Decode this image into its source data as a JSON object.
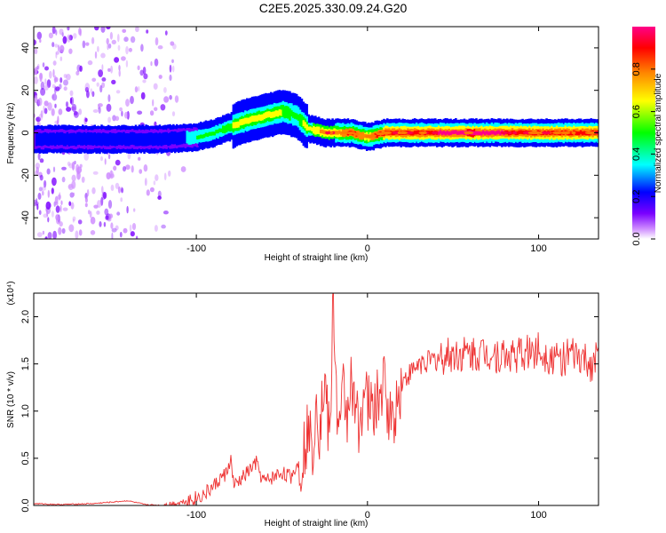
{
  "chart_data": [
    {
      "type": "heatmap",
      "title": "C2E5.2025.330.09.24.G20",
      "xlabel": "Height of straight line (km)",
      "ylabel": "Frequency (Hz)",
      "xlim": [
        -195,
        135
      ],
      "ylim": [
        -50,
        50
      ],
      "x_ticks": [
        -100,
        0,
        100
      ],
      "y_ticks": [
        -40,
        -20,
        0,
        20,
        40
      ],
      "colorbar": {
        "label": "Normalized spectral amplitude",
        "range": [
          0,
          1
        ],
        "ticks": [
          "0.0",
          "0.2",
          "0.4",
          "0.6",
          "0.8"
        ],
        "colors": [
          "#ffffff",
          "#cc88ff",
          "#7a00ff",
          "#0000ff",
          "#00ffff",
          "#00ff00",
          "#ffff00",
          "#ff8800",
          "#ff0000",
          "#ff0088"
        ]
      },
      "ridge": {
        "description_x": [
          -195,
          -160,
          -140,
          -120,
          -100,
          -90,
          -80,
          -70,
          -60,
          -50,
          -42,
          -35,
          -25,
          -10,
          0,
          10,
          20,
          40,
          60,
          80,
          100,
          120,
          135
        ],
        "frequency": [
          -3,
          -3,
          -3,
          -3,
          -2,
          0,
          3,
          6,
          8,
          10,
          8,
          2,
          0,
          0,
          -2,
          0,
          0,
          0,
          0,
          0,
          0,
          0,
          0
        ],
        "amplitude": [
          0.2,
          0.3,
          0.25,
          0.3,
          0.4,
          0.45,
          0.5,
          0.55,
          0.55,
          0.5,
          0.45,
          0.55,
          0.7,
          0.8,
          0.75,
          0.85,
          0.9,
          0.9,
          0.92,
          0.9,
          0.88,
          0.9,
          0.88
        ]
      },
      "noise_region_x": [
        -195,
        -105
      ],
      "colors": {
        "noise": "#8800ff"
      }
    },
    {
      "type": "line",
      "xlabel": "Height of straight line (km)",
      "ylabel": "SNR (10 * v/v)",
      "y_multiplier": "(x10⁴)",
      "xlim": [
        -195,
        135
      ],
      "ylim": [
        0,
        2.25
      ],
      "x_ticks": [
        -100,
        0,
        100
      ],
      "y_ticks": [
        "0.0",
        "0.5",
        "1.0",
        "1.5",
        "2.0"
      ],
      "series": [
        {
          "color": "#ee3333",
          "x": [
            -195,
            -180,
            -160,
            -140,
            -130,
            -120,
            -110,
            -100,
            -95,
            -90,
            -85,
            -82,
            -80,
            -78,
            -75,
            -70,
            -65,
            -62,
            -60,
            -55,
            -50,
            -45,
            -42,
            -38,
            -35,
            -32,
            -30,
            -28,
            -25,
            -22,
            -20,
            -18,
            -16,
            -14,
            -12,
            -10,
            -8,
            -5,
            -2,
            0,
            3,
            6,
            10,
            13,
            16,
            20,
            25,
            30,
            40,
            50,
            60,
            70,
            80,
            90,
            100,
            110,
            120,
            130,
            135
          ],
          "y": [
            0.02,
            0.01,
            0.02,
            0.05,
            0.01,
            0.0,
            0.03,
            0.08,
            0.12,
            0.2,
            0.3,
            0.35,
            0.5,
            0.2,
            0.25,
            0.35,
            0.45,
            0.3,
            0.25,
            0.3,
            0.35,
            0.3,
            0.4,
            0.5,
            0.8,
            0.6,
            1.2,
            0.8,
            1.35,
            0.6,
            2.25,
            1.1,
            0.7,
            1.3,
            0.9,
            1.4,
            1.0,
            0.9,
            1.2,
            1.1,
            1.0,
            1.1,
            1.3,
            0.9,
            1.0,
            1.3,
            1.4,
            1.5,
            1.55,
            1.6,
            1.6,
            1.62,
            1.58,
            1.6,
            1.65,
            1.55,
            1.58,
            1.5,
            1.55
          ]
        }
      ]
    }
  ]
}
